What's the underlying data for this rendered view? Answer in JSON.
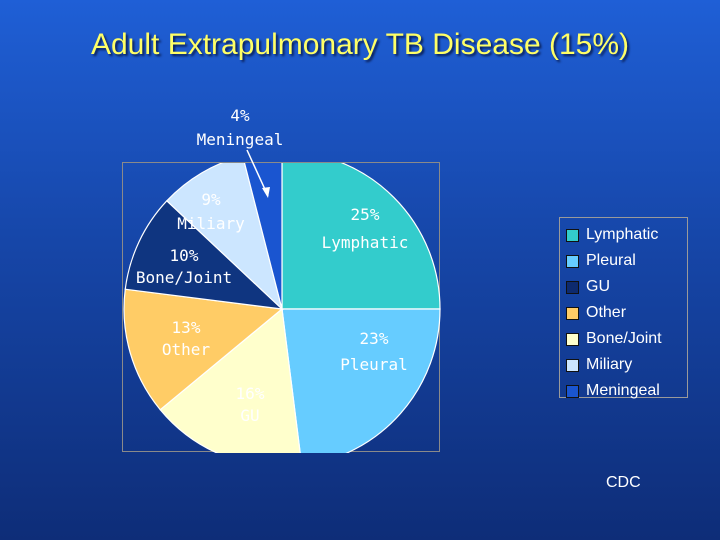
{
  "title": "Adult Extrapulmonary TB Disease (15%)",
  "source": "CDC",
  "chart_data": {
    "type": "pie",
    "title": "",
    "slices": [
      {
        "name": "Lymphatic",
        "value": 25,
        "label": "25%",
        "label2": "Lymphatic",
        "color": "#33cccc",
        "text_color": "#ffffff"
      },
      {
        "name": "Pleural",
        "value": 23,
        "label": "23%",
        "label2": "Pleural",
        "color": "#66ccff",
        "text_color": "#ffffff"
      },
      {
        "name": "GU",
        "value": 16,
        "label": "16%",
        "label2": "GU",
        "color": "#ffffcc",
        "text_color": "#ffffff"
      },
      {
        "name": "Other",
        "value": 13,
        "label": "13%",
        "label2": "Other",
        "color": "#ffcc66",
        "text_color": "#ffffff"
      },
      {
        "name": "Bone/Joint",
        "value": 10,
        "label": "10%",
        "label2": "Bone/Joint",
        "color": "#0f3580",
        "text_color": "#ffffff"
      },
      {
        "name": "Miliary",
        "value": 9,
        "label": "9%",
        "label2": "Miliary",
        "color": "#cce6ff",
        "text_color": "#ffffff"
      },
      {
        "name": "Meningeal",
        "value": 4,
        "label": "4%",
        "label2": "Meningeal",
        "color": "#1a55d0",
        "text_color": "#ffffff"
      }
    ],
    "legend": {
      "placement": "right",
      "items": [
        {
          "label": "Lymphatic",
          "color": "#33cccc"
        },
        {
          "label": "Pleural",
          "color": "#66ccff"
        },
        {
          "label": "GU",
          "color": "#0d2a6e"
        },
        {
          "label": "Other",
          "color": "#ffcc66"
        },
        {
          "label": "Bone/Joint",
          "color": "#ffffcc"
        },
        {
          "label": "Miliary",
          "color": "#cce6ff"
        },
        {
          "label": "Meningeal",
          "color": "#1a55d0"
        }
      ]
    }
  }
}
